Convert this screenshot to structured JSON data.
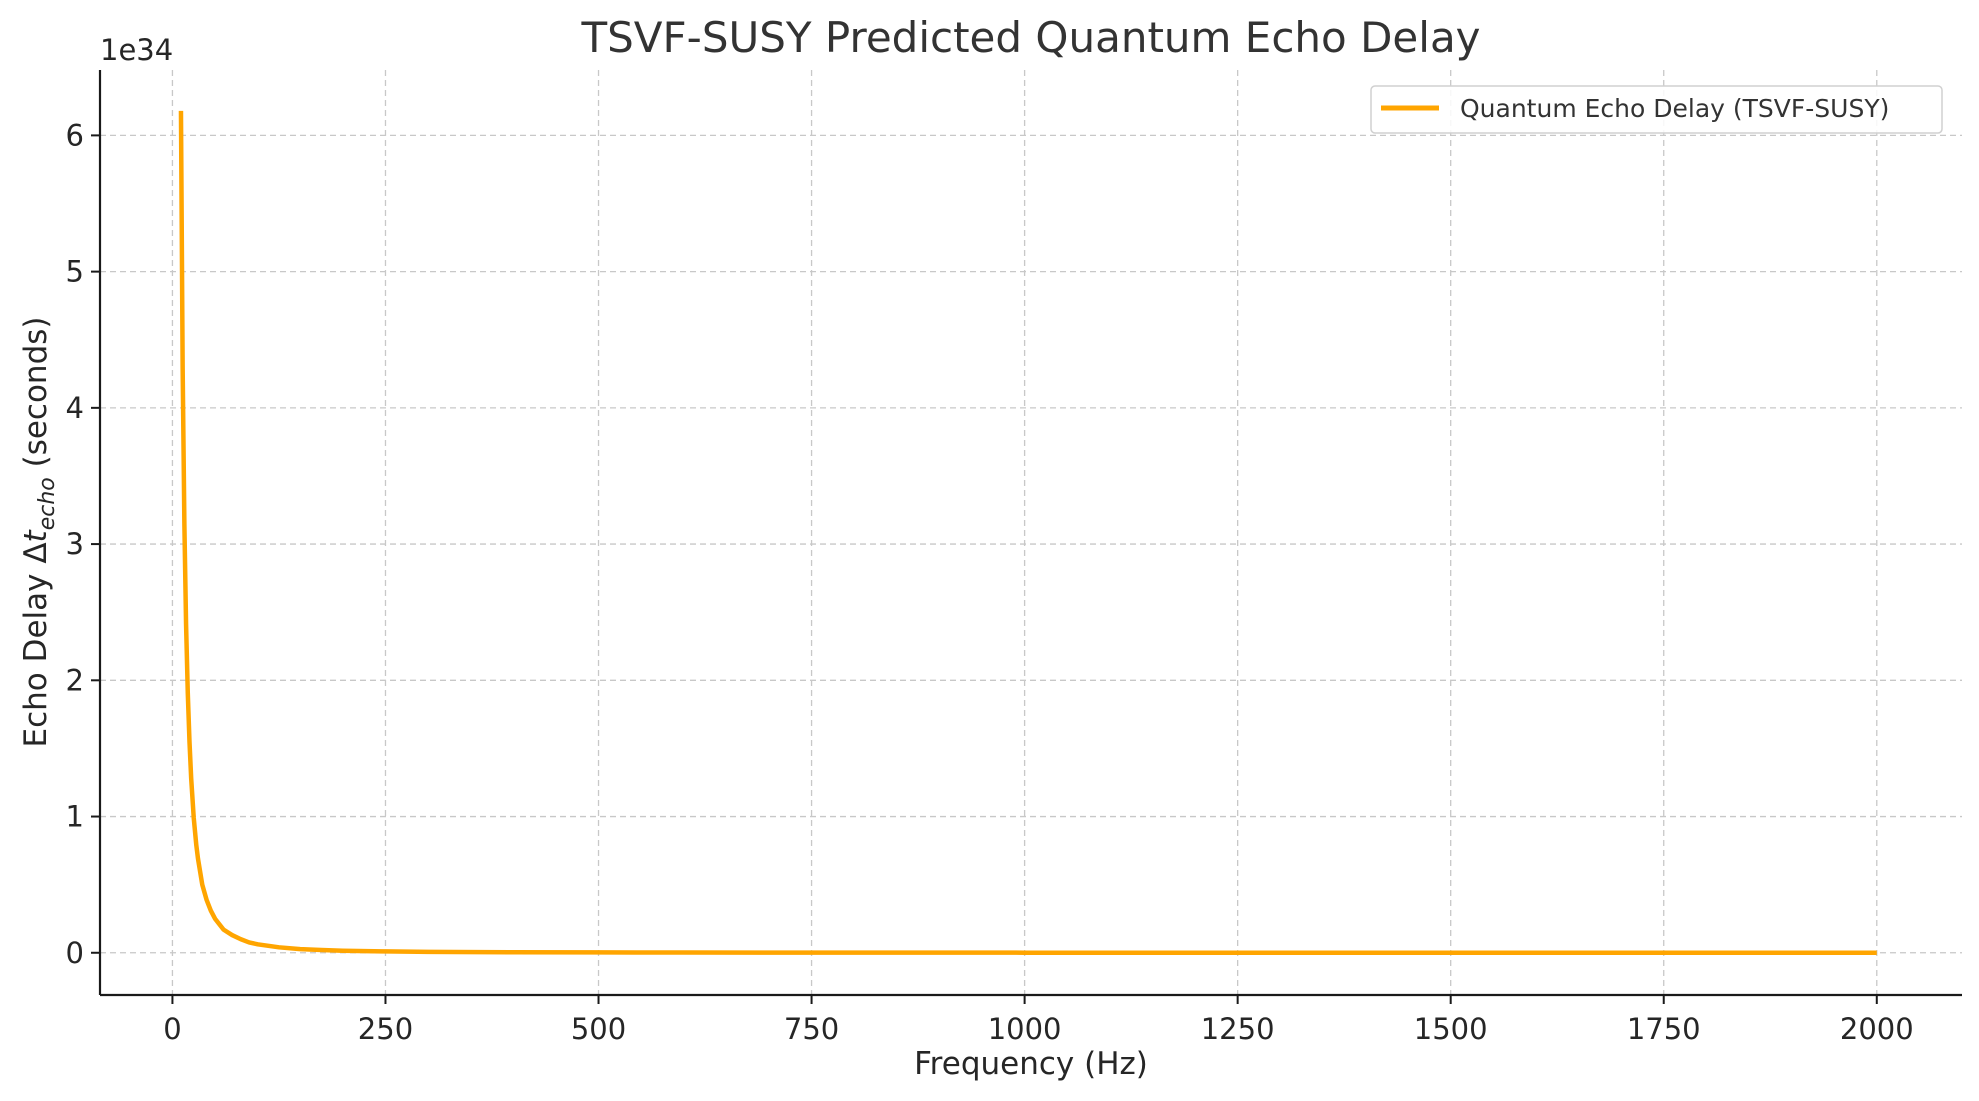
{
  "chart_data": {
    "type": "line",
    "title": "TSVF-SUSY Predicted Quantum Echo Delay",
    "xlabel": "Frequency (Hz)",
    "ylabel": {
      "prefix": "Echo Delay Δ",
      "symbol": "t",
      "subscript": "echo",
      "suffix": " (seconds)"
    },
    "y_offset_label": "1e34",
    "xlim": [
      -85,
      2100
    ],
    "ylim": [
      -0.31,
      6.48
    ],
    "x_unit_scale": "linear",
    "y_multiplier": 1e+34,
    "x_ticks": [
      0,
      250,
      500,
      750,
      1000,
      1250,
      1500,
      1750,
      2000
    ],
    "x_tick_labels": [
      "0",
      "250",
      "500",
      "750",
      "1000",
      "1250",
      "1500",
      "1750",
      "2000"
    ],
    "y_ticks": [
      0,
      1,
      2,
      3,
      4,
      5,
      6
    ],
    "y_tick_labels": [
      "0",
      "1",
      "2",
      "3",
      "4",
      "5",
      "6"
    ],
    "grid": true,
    "legend_position": "top-right",
    "colors": {
      "series": "#FFA500"
    },
    "series": [
      {
        "name": "Quantum Echo Delay (TSVF-SUSY)",
        "x": [
          10,
          12,
          14,
          16,
          18,
          20,
          22,
          25,
          28,
          30,
          35,
          40,
          45,
          50,
          60,
          70,
          80,
          90,
          100,
          125,
          150,
          175,
          200,
          250,
          300,
          400,
          500,
          600,
          800,
          1000,
          1250,
          1500,
          1750,
          2000
        ],
        "y": [
          6.18,
          4.29,
          3.15,
          2.41,
          1.91,
          1.55,
          1.28,
          0.99,
          0.79,
          0.69,
          0.5,
          0.39,
          0.31,
          0.25,
          0.17,
          0.13,
          0.1,
          0.076,
          0.062,
          0.04,
          0.027,
          0.02,
          0.015,
          0.0099,
          0.0069,
          0.0039,
          0.0025,
          0.0017,
          0.001,
          0.0006,
          0.0004,
          0.0003,
          0.0002,
          0.0002
        ]
      }
    ]
  }
}
